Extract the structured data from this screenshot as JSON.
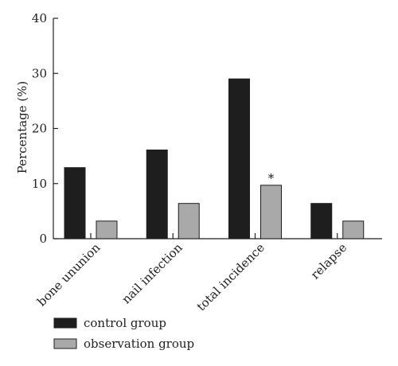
{
  "chart_data": {
    "type": "bar",
    "title": "",
    "xlabel": "",
    "ylabel": "Percentage (%)",
    "ylim": [
      0,
      40
    ],
    "yticks": [
      0,
      10,
      20,
      30,
      40
    ],
    "grid": false,
    "legend_position": "bottom-left",
    "categories": [
      "bone ununion",
      "nail infection",
      "total incidence",
      "relapse"
    ],
    "series": [
      {
        "name": "control group",
        "color": "#1e1e1e",
        "values": [
          12.9,
          16.1,
          29.0,
          6.4
        ]
      },
      {
        "name": "observation group",
        "color": "#a9a9a9",
        "values": [
          3.2,
          6.4,
          9.7,
          3.2
        ]
      }
    ],
    "annotations": [
      {
        "text": "*",
        "category": "total incidence",
        "series": "observation group"
      }
    ]
  }
}
